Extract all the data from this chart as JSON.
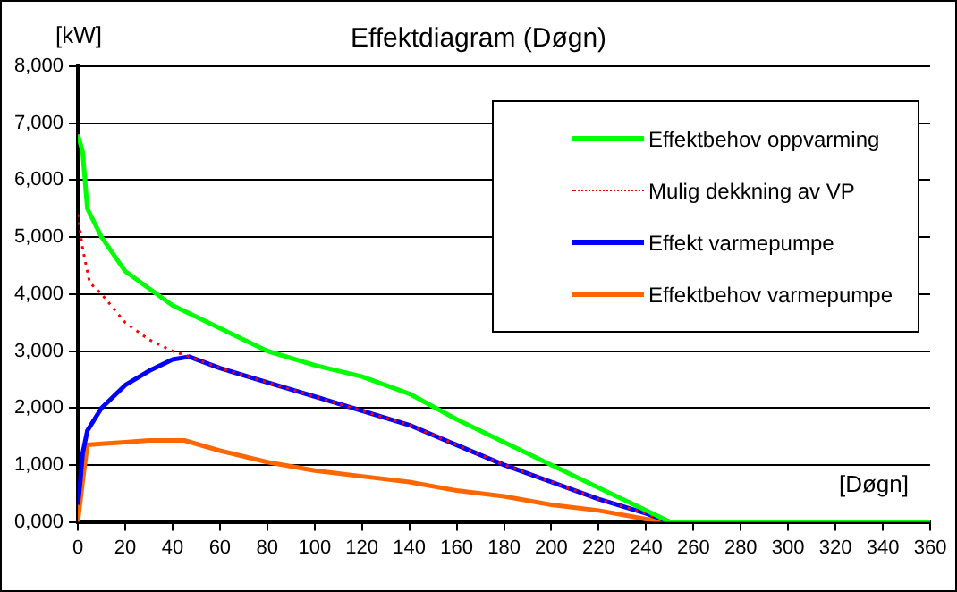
{
  "chart_data": {
    "type": "line",
    "title": "Effektdiagram (Døgn)",
    "xlabel": "[Døgn]",
    "ylabel": "[kW]",
    "xlim": [
      0,
      360
    ],
    "xticks": [
      0,
      20,
      40,
      60,
      80,
      100,
      120,
      140,
      160,
      180,
      200,
      220,
      240,
      260,
      280,
      300,
      320,
      340,
      360
    ],
    "ylim": [
      0,
      8000
    ],
    "yticks": [
      {
        "value": 0,
        "label": "0,000"
      },
      {
        "value": 1000,
        "label": "1,000"
      },
      {
        "value": 2000,
        "label": "2,000"
      },
      {
        "value": 3000,
        "label": "3,000"
      },
      {
        "value": 4000,
        "label": "4,000"
      },
      {
        "value": 5000,
        "label": "5,000"
      },
      {
        "value": 6000,
        "label": "6,000"
      },
      {
        "value": 7000,
        "label": "7,000"
      },
      {
        "value": 8000,
        "label": "8,000"
      }
    ],
    "grid": "y",
    "legend": "top right",
    "marker": "none",
    "series": [
      {
        "name": "Effektbehov oppvarming",
        "color": "#00ff00",
        "line_style": "solid",
        "x": [
          0,
          2,
          4,
          10,
          20,
          30,
          40,
          50,
          60,
          80,
          100,
          120,
          140,
          160,
          180,
          200,
          220,
          240,
          250,
          360
        ],
        "values": [
          6800,
          6500,
          5500,
          5000,
          4400,
          4100,
          3800,
          3600,
          3400,
          3000,
          2750,
          2550,
          2250,
          1800,
          1400,
          1000,
          600,
          200,
          0,
          0
        ]
      },
      {
        "name": "Mulig dekkning av VP",
        "color": "#ff0000",
        "line_style": "dotted",
        "x": [
          0,
          2,
          5,
          10,
          20,
          30,
          40,
          47,
          60,
          80,
          100,
          120,
          140,
          160,
          180,
          200,
          220,
          240,
          250
        ],
        "values": [
          5400,
          4800,
          4200,
          4000,
          3500,
          3200,
          3000,
          2900,
          2700,
          2450,
          2200,
          1950,
          1700,
          1350,
          1000,
          700,
          400,
          150,
          0
        ]
      },
      {
        "name": "Effekt varmepumpe",
        "color": "#0000ff",
        "line_style": "solid",
        "x": [
          0,
          1,
          2,
          4,
          10,
          20,
          30,
          40,
          47,
          60,
          80,
          100,
          120,
          140,
          160,
          180,
          200,
          220,
          240,
          250,
          360
        ],
        "values": [
          300,
          700,
          1200,
          1600,
          2000,
          2400,
          2650,
          2850,
          2900,
          2700,
          2450,
          2200,
          1950,
          1700,
          1350,
          1000,
          700,
          400,
          150,
          0,
          0
        ]
      },
      {
        "name": "Effektbehov varmepumpe",
        "color": "#ff6600",
        "line_style": "solid",
        "x": [
          0,
          2,
          4,
          10,
          20,
          30,
          45,
          60,
          80,
          100,
          120,
          140,
          160,
          180,
          200,
          220,
          240,
          250,
          360
        ],
        "values": [
          0,
          700,
          1350,
          1370,
          1400,
          1430,
          1430,
          1250,
          1050,
          900,
          800,
          700,
          550,
          450,
          300,
          200,
          50,
          0,
          0
        ]
      }
    ]
  }
}
